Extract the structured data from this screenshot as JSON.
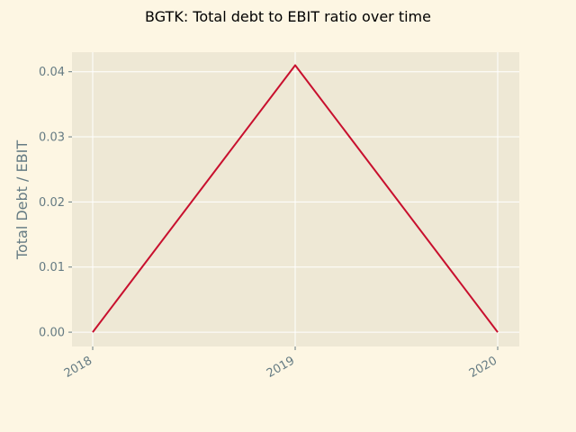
{
  "chart_data": {
    "type": "line",
    "title": "BGTK: Total debt to EBIT ratio over time",
    "xlabel": "",
    "ylabel": "Total Debt / EBIT",
    "x": [
      "2018",
      "2019",
      "2020"
    ],
    "series": [
      {
        "values": [
          0.0,
          0.041,
          0.0
        ]
      }
    ],
    "ylim": [
      -0.0022,
      0.043
    ],
    "yticks": [
      0.0,
      0.01,
      0.02,
      0.03,
      0.04
    ],
    "ytick_labels": [
      "0.00",
      "0.01",
      "0.02",
      "0.03",
      "0.04"
    ],
    "grid": true,
    "colors": {
      "page_background": "#fdf6e3",
      "plot_background": "#eee8d5",
      "grid": "#ffffff",
      "line": "#c8102e",
      "ticks": "#657b83"
    }
  }
}
